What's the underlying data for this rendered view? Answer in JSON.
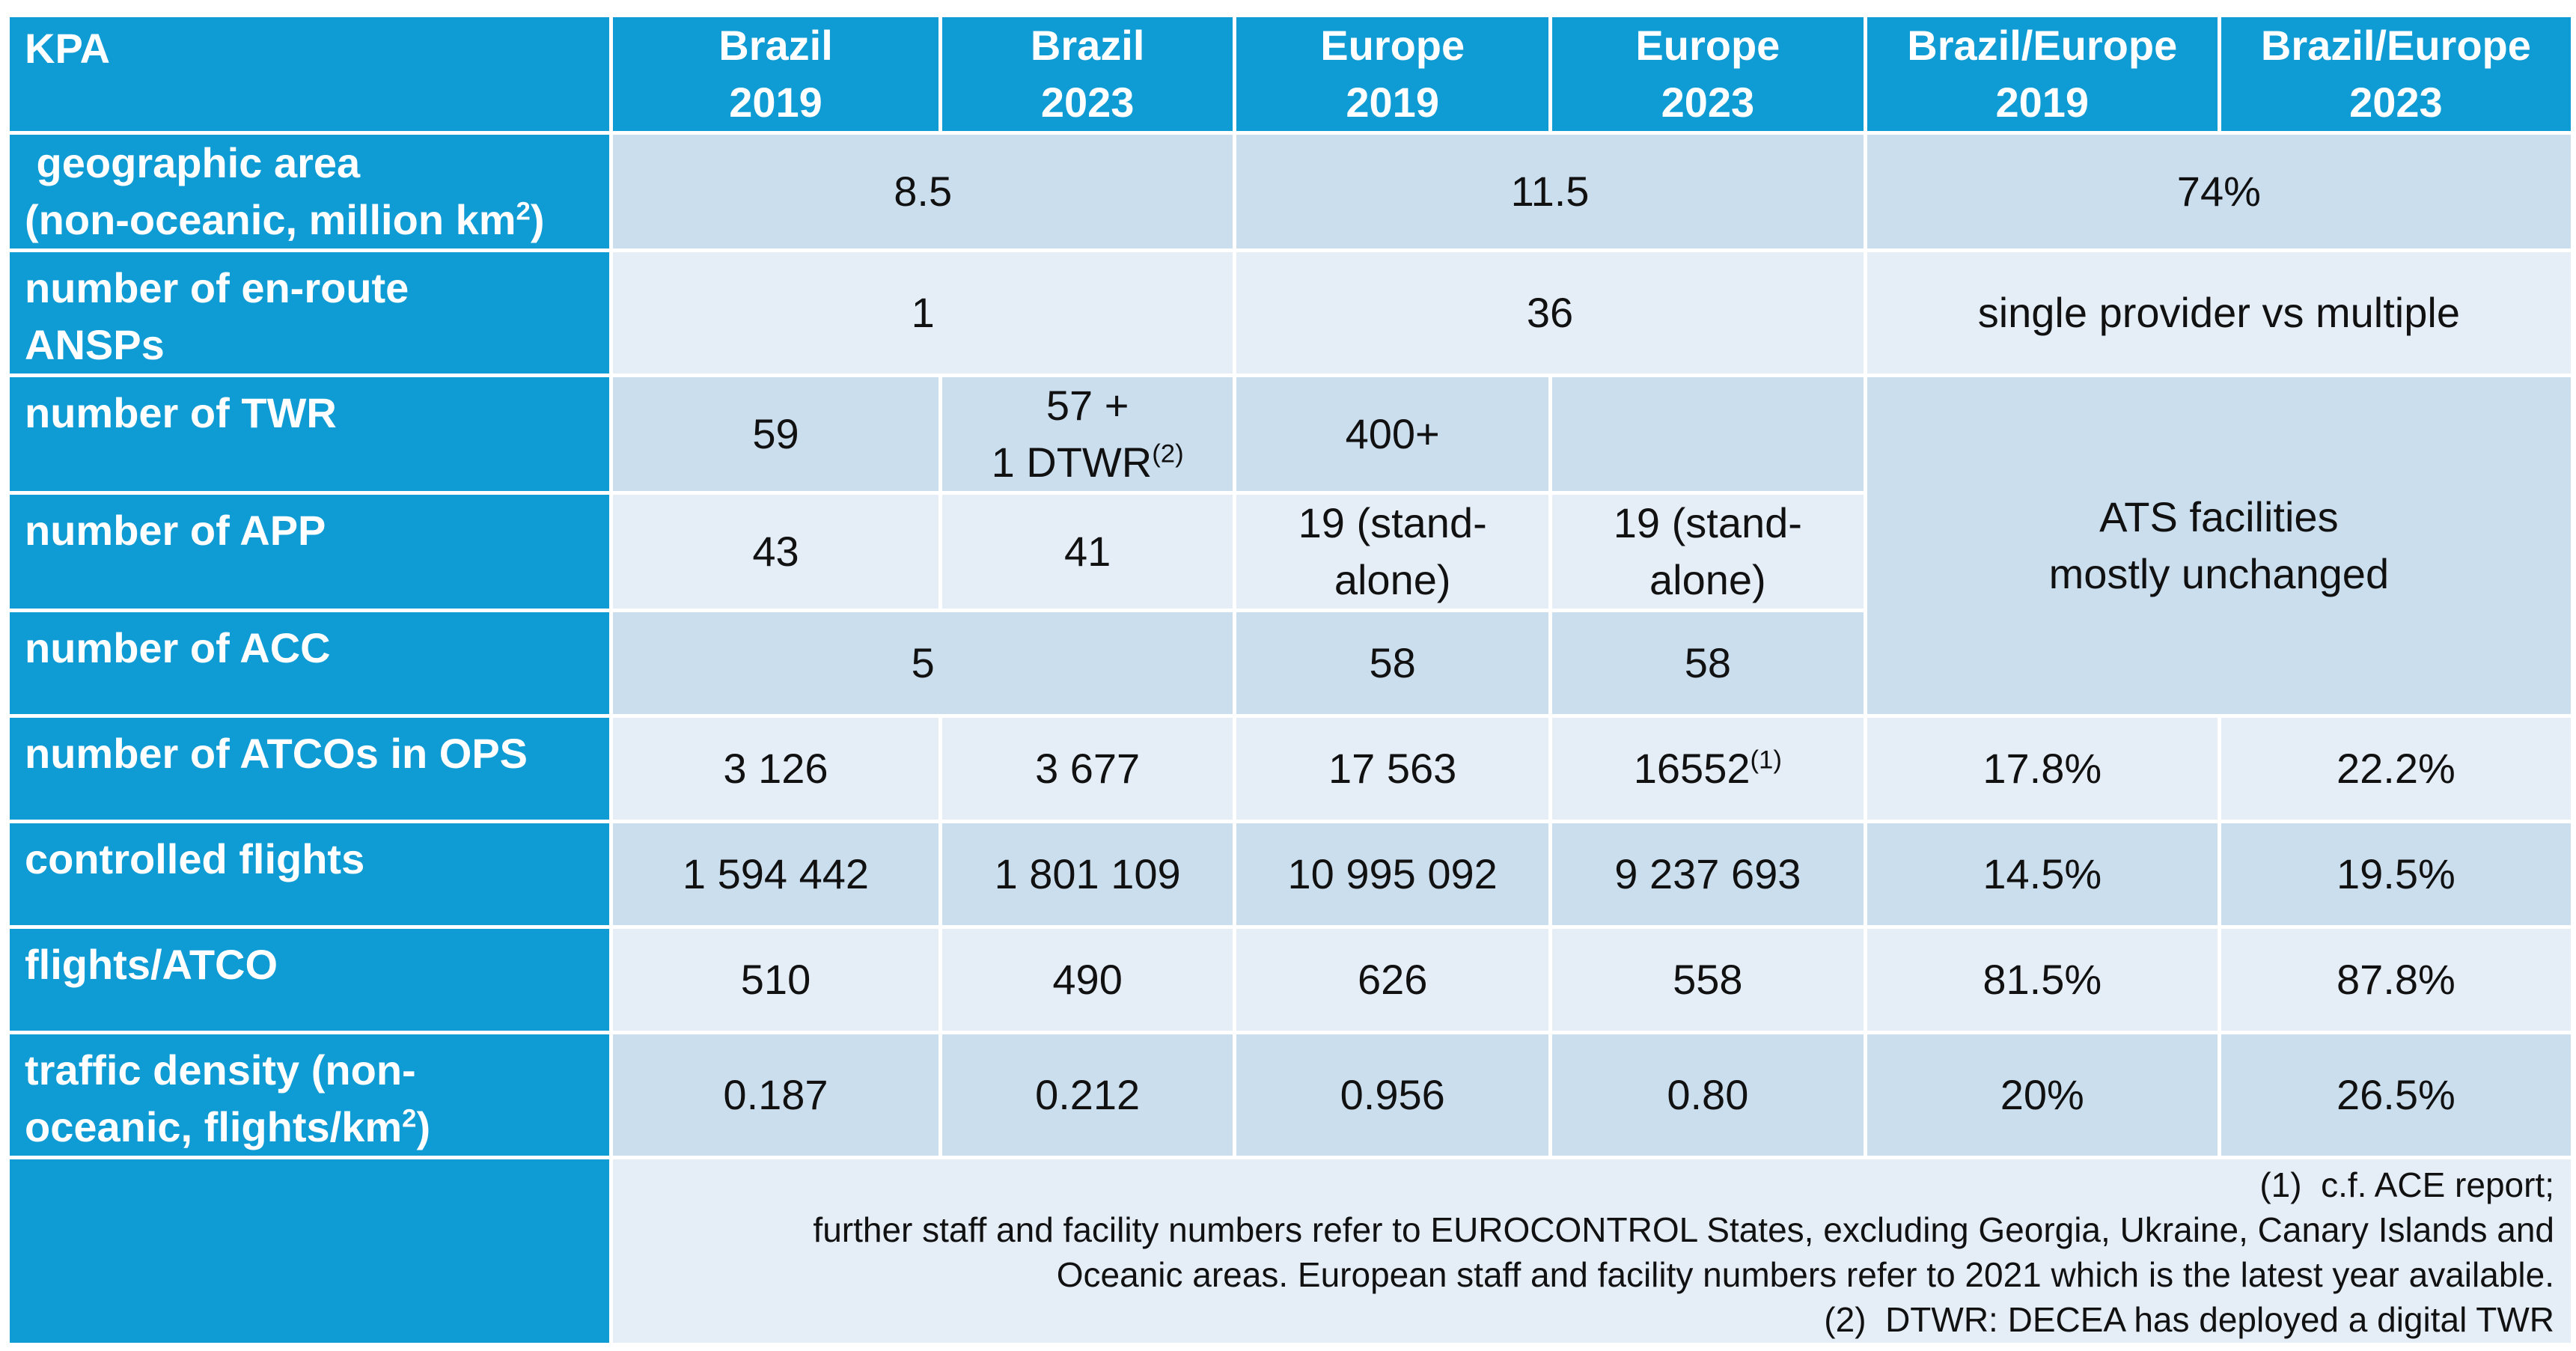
{
  "header": {
    "kpa": "KPA",
    "columns": [
      {
        "line1": "Brazil",
        "line2": "2019"
      },
      {
        "line1": "Brazil",
        "line2": "2023"
      },
      {
        "line1": "Europe",
        "line2": "2019"
      },
      {
        "line1": "Europe",
        "line2": "2023"
      },
      {
        "line1": "Brazil/Europe",
        "line2": "2019"
      },
      {
        "line1": "Brazil/Europe",
        "line2": "2023"
      }
    ]
  },
  "rows": {
    "geographic_area": {
      "label_line1": " geographic area",
      "label_line2": "(non-oceanic, million km",
      "label_sup": "2",
      "label_tail": ")",
      "brazil": "8.5",
      "europe": "11.5",
      "ratio": "74%"
    },
    "enroute_ansps": {
      "label_line1": "number of en-route",
      "label_line2": "ANSPs",
      "brazil": "1",
      "europe": "36",
      "ratio": "single provider vs multiple"
    },
    "twr": {
      "label": "number of TWR",
      "brazil_2019": "59",
      "brazil_2023_line1": "57 +",
      "brazil_2023_line2": "1 DTWR",
      "brazil_2023_sup": "(2)",
      "europe_2019": "400+",
      "europe_2023": ""
    },
    "app": {
      "label": "number of APP",
      "brazil_2019": "43",
      "brazil_2023": "41",
      "europe_2019_line1": "19 (stand-",
      "europe_2019_line2": "alone)",
      "europe_2023_line1": "19 (stand-",
      "europe_2023_line2": "alone)"
    },
    "acc": {
      "label": "number of ACC",
      "brazil": "5",
      "europe_2019": "58",
      "europe_2023": "58"
    },
    "ats_ratio": {
      "line1": "ATS facilities",
      "line2": "mostly unchanged"
    },
    "atcos": {
      "label": "number of ATCOs in OPS",
      "brazil_2019": "3 126",
      "brazil_2023": "3 677",
      "europe_2019": "17 563",
      "europe_2023": "16552",
      "europe_2023_sup": "(1)",
      "ratio_2019": "17.8%",
      "ratio_2023": "22.2%"
    },
    "flights": {
      "label": "controlled flights",
      "brazil_2019": "1 594 442",
      "brazil_2023": "1 801 109",
      "europe_2019": "10 995 092",
      "europe_2023": "9 237 693",
      "ratio_2019": "14.5%",
      "ratio_2023": "19.5%"
    },
    "flights_atco": {
      "label": "flights/ATCO",
      "brazil_2019": "510",
      "brazil_2023": "490",
      "europe_2019": "626",
      "europe_2023": "558",
      "ratio_2019": "81.5%",
      "ratio_2023": "87.8%"
    },
    "density": {
      "label_line1": "traffic density (non-",
      "label_line2": "oceanic, flights/km",
      "label_sup": "2",
      "label_tail": ")",
      "brazil_2019": "0.187",
      "brazil_2023": "0.212",
      "europe_2019": "0.956",
      "europe_2023": "0.80",
      "ratio_2019": "20%",
      "ratio_2023": "26.5%"
    }
  },
  "notes": [
    "(1)  c.f. ACE report;",
    "further staff and facility numbers refer to EUROCONTROL States, excluding Georgia, Ukraine, Canary Islands and",
    "Oceanic areas. European staff and facility numbers refer to 2021 which is the latest year available.",
    "(2)  DTWR: DECEA has deployed a digital TWR"
  ],
  "colors": {
    "header_blue": "#0f9bd4",
    "row_dark": "#cbdeee",
    "row_light": "#e5eef7"
  }
}
